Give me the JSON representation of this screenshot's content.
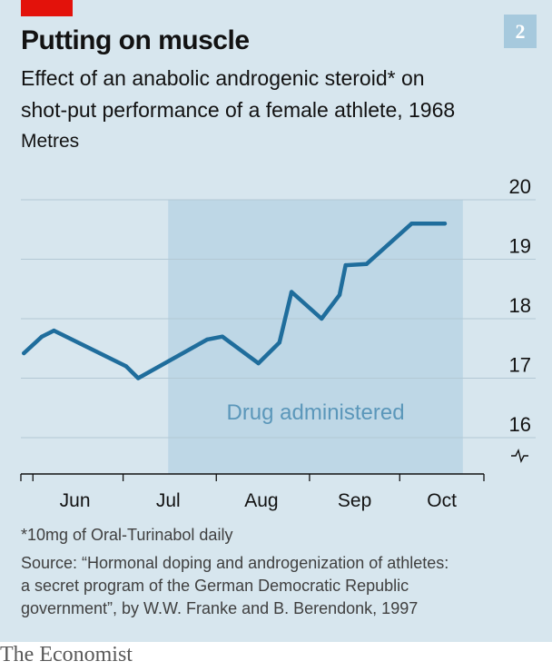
{
  "header": {
    "chart_number": "2",
    "title": "Putting on muscle",
    "subtitle_line1": "Effect of an anabolic androgenic steroid* on",
    "subtitle_line2": "shot-put performance of a female athlete, 1968",
    "unit": "Metres"
  },
  "chart_data": {
    "type": "line",
    "title": "Putting on muscle",
    "ylabel": "Metres",
    "ylim": [
      16,
      20
    ],
    "yticks": [
      16,
      17,
      18,
      19,
      20
    ],
    "y_axis_break": true,
    "x_ticks": [
      "Jun",
      "Jul",
      "Aug",
      "Sep",
      "Oct"
    ],
    "xlim": [
      "1968-05-28",
      "1968-10-29"
    ],
    "shaded_region": {
      "label": "Drug administered",
      "start": "1968-07-16",
      "end": "1968-10-22"
    },
    "series": [
      {
        "color": "#1f6d9c",
        "points": [
          {
            "x": "1968-05-29",
            "y": 17.42
          },
          {
            "x": "1968-06-04",
            "y": 17.7
          },
          {
            "x": "1968-06-08",
            "y": 17.8
          },
          {
            "x": "1968-07-02",
            "y": 17.2
          },
          {
            "x": "1968-07-06",
            "y": 17.0
          },
          {
            "x": "1968-07-29",
            "y": 17.65
          },
          {
            "x": "1968-08-03",
            "y": 17.7
          },
          {
            "x": "1968-08-15",
            "y": 17.25
          },
          {
            "x": "1968-08-22",
            "y": 17.6
          },
          {
            "x": "1968-08-26",
            "y": 18.45
          },
          {
            "x": "1968-09-05",
            "y": 18.0
          },
          {
            "x": "1968-09-11",
            "y": 18.4
          },
          {
            "x": "1968-09-13",
            "y": 18.9
          },
          {
            "x": "1968-09-20",
            "y": 18.92
          },
          {
            "x": "1968-10-05",
            "y": 19.6
          },
          {
            "x": "1968-10-16",
            "y": 19.6
          }
        ]
      }
    ]
  },
  "footnote": "*10mg of Oral-Turinabol daily",
  "source_line1": "Source: “Hormonal doping and androgenization of athletes:",
  "source_line2": "a secret program of the German Democratic Republic",
  "source_line3": "government”, by W.W. Franke and B. Berendonk, 1997",
  "brand": "The Economist"
}
